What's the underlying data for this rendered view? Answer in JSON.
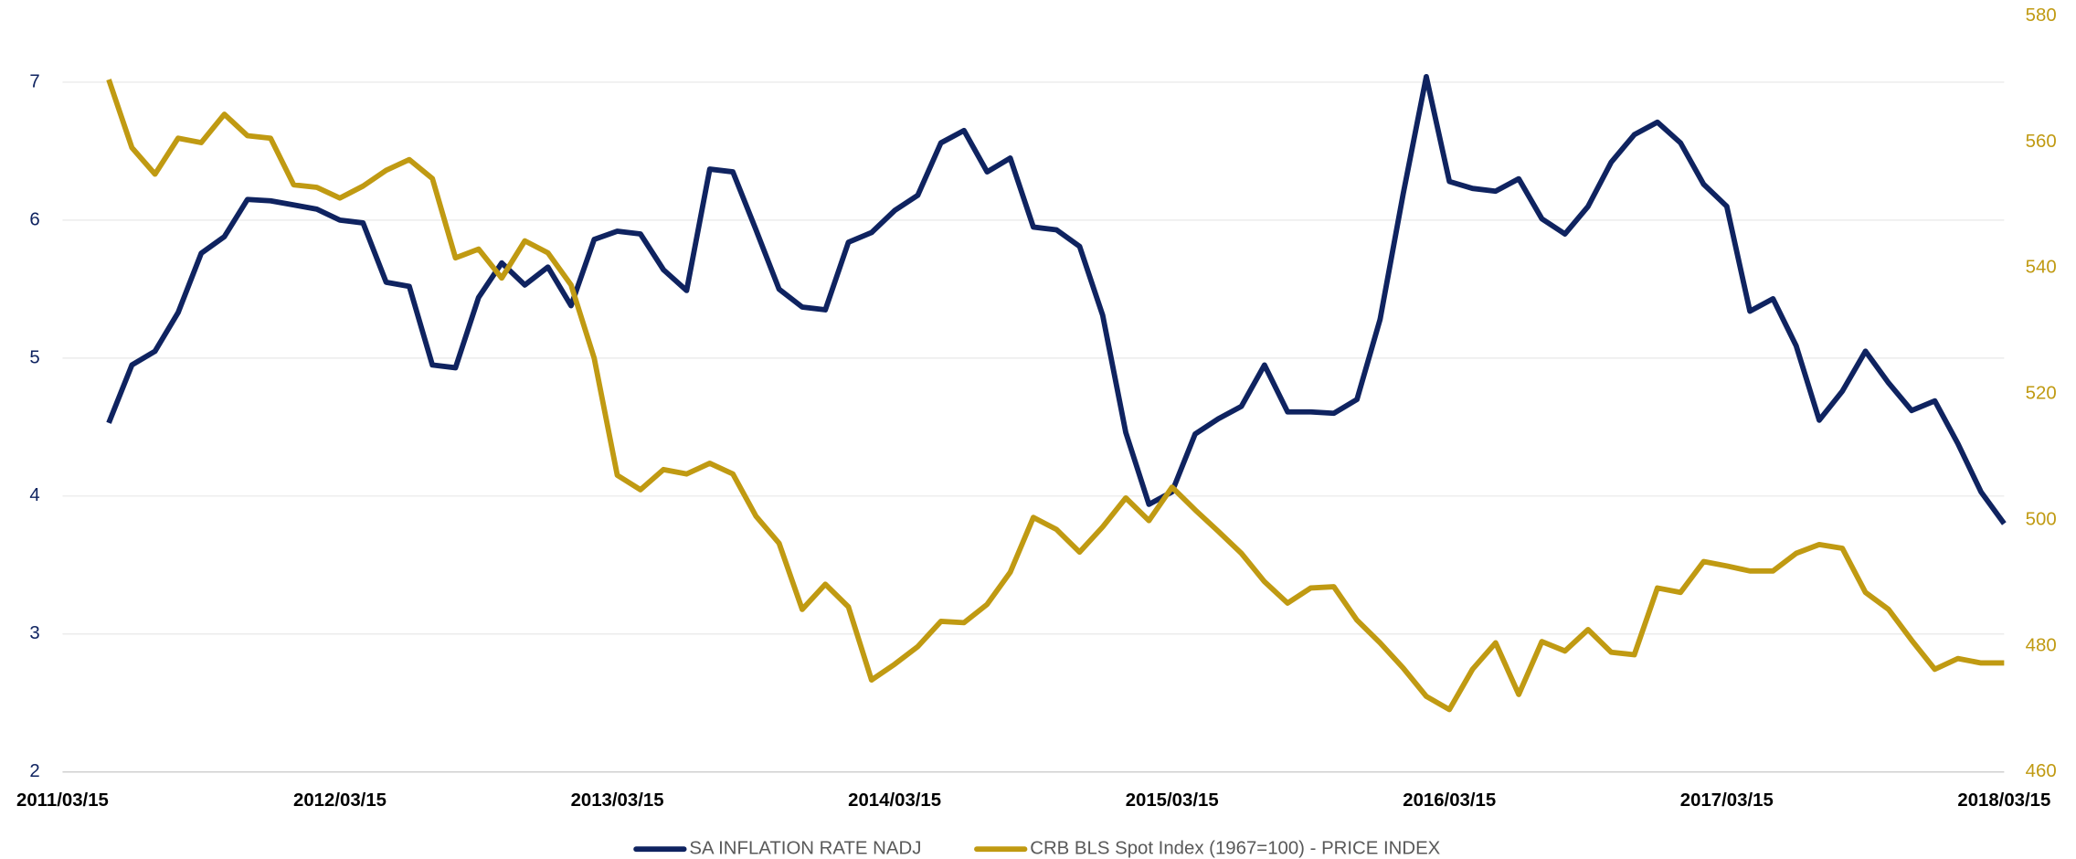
{
  "chart_data": {
    "type": "line",
    "x": [
      "2011/05/15",
      "2011/06/15",
      "2011/07/15",
      "2011/08/15",
      "2011/09/15",
      "2011/10/15",
      "2011/11/15",
      "2011/12/15",
      "2012/01/15",
      "2012/02/15",
      "2012/03/15",
      "2012/04/15",
      "2012/05/15",
      "2012/06/15",
      "2012/07/15",
      "2012/08/15",
      "2012/09/15",
      "2012/10/15",
      "2012/11/15",
      "2012/12/15",
      "2013/01/15",
      "2013/02/15",
      "2013/03/15",
      "2013/04/15",
      "2013/05/15",
      "2013/06/15",
      "2013/07/15",
      "2013/08/15",
      "2013/09/15",
      "2013/10/15",
      "2013/11/15",
      "2013/12/15",
      "2014/01/15",
      "2014/02/15",
      "2014/03/15",
      "2014/04/15",
      "2014/05/15",
      "2014/06/15",
      "2014/07/15",
      "2014/08/15",
      "2014/09/15",
      "2014/10/15",
      "2014/11/15",
      "2014/12/15",
      "2015/01/15",
      "2015/02/15",
      "2015/03/15",
      "2015/04/15",
      "2015/05/15",
      "2015/06/15",
      "2015/07/15",
      "2015/08/15",
      "2015/09/15",
      "2015/10/15",
      "2015/11/15",
      "2015/12/15",
      "2016/01/15",
      "2016/02/15",
      "2016/03/15",
      "2016/04/15",
      "2016/05/15",
      "2016/06/15",
      "2016/07/15",
      "2016/08/15",
      "2016/09/15",
      "2016/10/15",
      "2016/11/15",
      "2016/12/15",
      "2017/01/15",
      "2017/02/15",
      "2017/03/15",
      "2017/04/15",
      "2017/05/15",
      "2017/06/15",
      "2017/07/15",
      "2017/08/15",
      "2017/09/15",
      "2017/10/15",
      "2017/11/15",
      "2017/12/15",
      "2018/01/15",
      "2018/02/15",
      "2018/03/15"
    ],
    "series": [
      {
        "name": "SA INFLATION RATE NADJ",
        "color": "#0f2360",
        "values": [
          4.53,
          4.95,
          5.05,
          5.33,
          5.76,
          5.88,
          6.15,
          6.14,
          6.11,
          6.08,
          6.0,
          5.98,
          5.55,
          5.52,
          4.95,
          4.93,
          5.44,
          5.69,
          5.53,
          5.66,
          5.38,
          5.86,
          5.92,
          5.9,
          5.64,
          5.49,
          6.37,
          6.35,
          5.93,
          5.5,
          5.37,
          5.35,
          5.84,
          5.91,
          6.07,
          6.18,
          6.56,
          6.65,
          6.35,
          6.45,
          5.95,
          5.93,
          5.81,
          5.31,
          4.46,
          3.94,
          4.03,
          4.45,
          4.56,
          4.65,
          4.95,
          4.61,
          4.61,
          4.6,
          4.7,
          5.28,
          6.19,
          7.04,
          6.28,
          6.23,
          6.21,
          6.3,
          6.01,
          5.9,
          6.1,
          6.42,
          6.62,
          6.71,
          6.56,
          6.26,
          6.1,
          5.34,
          5.43,
          5.09,
          4.55,
          4.76,
          5.05,
          4.82,
          4.62,
          4.69,
          4.38,
          4.03,
          3.8
        ]
      },
      {
        "name": "CRB BLS Spot Index (1967=100) - PRICE INDEX",
        "color": "#c09a12",
        "axis": "y2",
        "values": [
          569.9,
          559.1,
          554.9,
          560.6,
          559.9,
          564.4,
          561.0,
          560.6,
          553.2,
          552.8,
          551.1,
          553.0,
          555.5,
          557.2,
          554.2,
          541.6,
          543.0,
          538.4,
          544.3,
          542.4,
          537.3,
          525.7,
          507.1,
          504.8,
          508.0,
          507.3,
          509.0,
          507.3,
          500.6,
          496.3,
          485.8,
          489.8,
          486.2,
          474.6,
          477.1,
          479.9,
          483.9,
          483.7,
          486.6,
          491.7,
          500.4,
          498.5,
          494.9,
          498.9,
          503.5,
          499.9,
          505.2,
          501.6,
          498.2,
          494.7,
          490.2,
          486.8,
          489.2,
          489.4,
          484.1,
          480.5,
          476.5,
          472.0,
          469.9,
          476.3,
          480.5,
          472.3,
          480.7,
          479.2,
          482.6,
          479.0,
          478.6,
          489.2,
          488.5,
          493.4,
          492.7,
          491.9,
          491.9,
          494.7,
          496.1,
          495.5,
          488.5,
          485.8,
          480.9,
          476.3,
          478.0,
          477.3,
          477.3
        ]
      }
    ],
    "xlim": [
      "2011/03/15",
      "2018/03/15"
    ],
    "xticks": [
      "2011/03/15",
      "2012/03/15",
      "2013/03/15",
      "2014/03/15",
      "2015/03/15",
      "2016/03/15",
      "2017/03/15",
      "2018/03/15"
    ],
    "ylim": [
      2,
      7.48
    ],
    "yticks": [
      2,
      3,
      4,
      5,
      6,
      7
    ],
    "y2lim": [
      460,
      580
    ],
    "y2ticks": [
      460,
      480,
      500,
      520,
      540,
      560,
      580
    ],
    "grid": true,
    "legend": "bottom"
  }
}
